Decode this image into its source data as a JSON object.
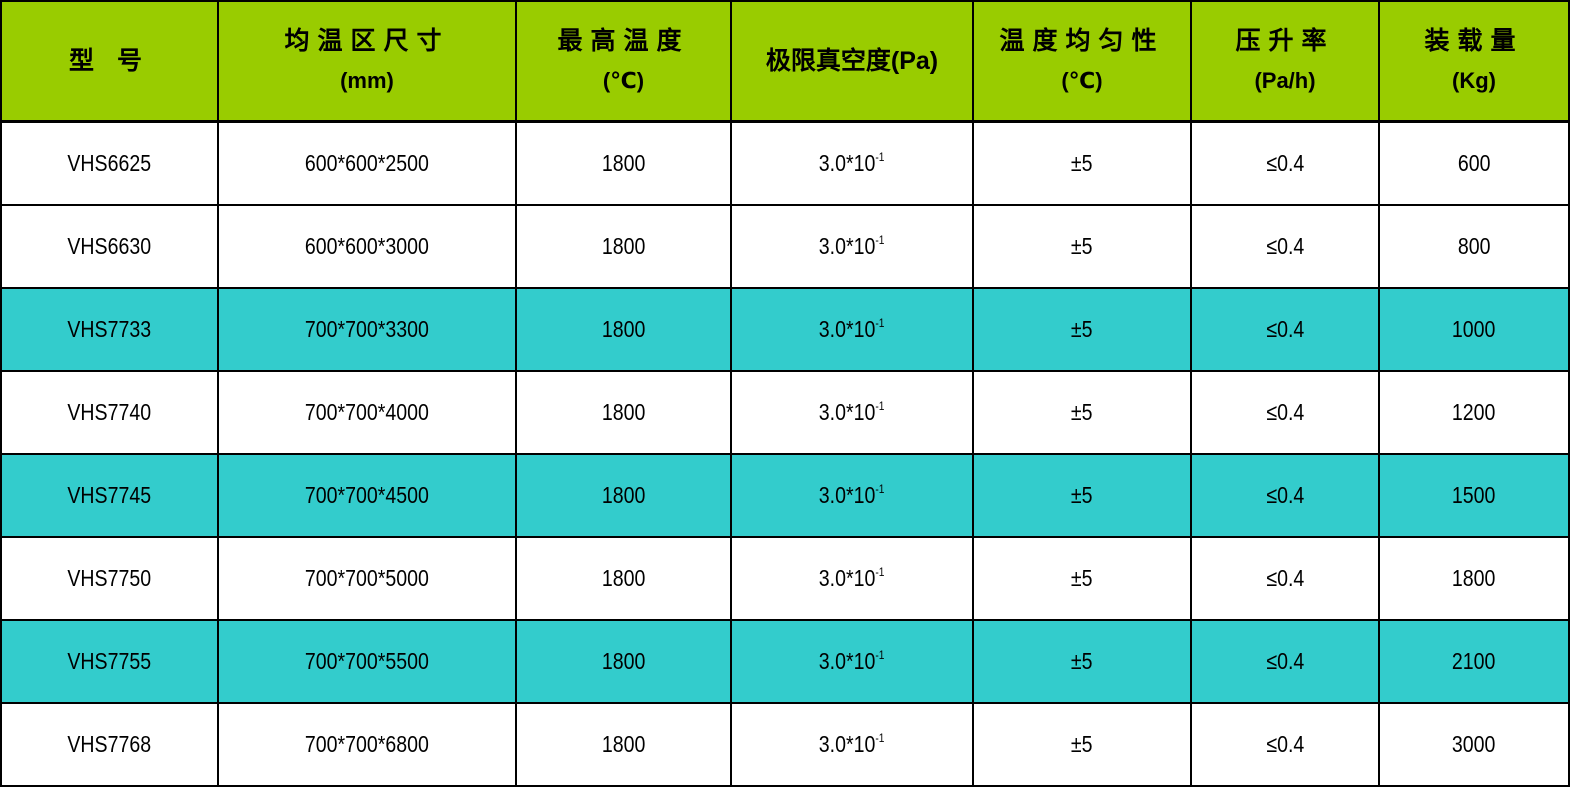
{
  "colors": {
    "header_bg": "#99cc00",
    "highlight_row_bg": "#33cccc",
    "row_bg": "#ffffff"
  },
  "headers": [
    {
      "line1": "型  号",
      "line2": ""
    },
    {
      "line1": "均温区尺寸",
      "line2": "(mm)"
    },
    {
      "line1": "最高温度",
      "line2": "(℃)"
    },
    {
      "line1": "极限真空度(Pa)",
      "line2": ""
    },
    {
      "line1": "温度均匀性",
      "line2": "(℃)"
    },
    {
      "line1": "压升率",
      "line2": "(Pa/h)"
    },
    {
      "line1": "装载量",
      "line2": "(Kg)"
    }
  ],
  "rows": [
    {
      "highlight": false,
      "model": "VHS6625",
      "size": "600*600*2500",
      "max_temp": "1800",
      "vacuum": "3.0*10",
      "vacuum_exp": "-1",
      "uniformity": "±5",
      "pressure_rise": "≤0.4",
      "load": "600"
    },
    {
      "highlight": false,
      "model": "VHS6630",
      "size": "600*600*3000",
      "max_temp": "1800",
      "vacuum": "3.0*10",
      "vacuum_exp": "-1",
      "uniformity": "±5",
      "pressure_rise": "≤0.4",
      "load": "800"
    },
    {
      "highlight": true,
      "model": "VHS7733",
      "size": "700*700*3300",
      "max_temp": "1800",
      "vacuum": "3.0*10",
      "vacuum_exp": "-1",
      "uniformity": "±5",
      "pressure_rise": "≤0.4",
      "load": "1000"
    },
    {
      "highlight": false,
      "model": "VHS7740",
      "size": "700*700*4000",
      "max_temp": "1800",
      "vacuum": "3.0*10",
      "vacuum_exp": "-1",
      "uniformity": "±5",
      "pressure_rise": "≤0.4",
      "load": "1200"
    },
    {
      "highlight": true,
      "model": "VHS7745",
      "size": "700*700*4500",
      "max_temp": "1800",
      "vacuum": "3.0*10",
      "vacuum_exp": "-1",
      "uniformity": "±5",
      "pressure_rise": "≤0.4",
      "load": "1500"
    },
    {
      "highlight": false,
      "model": "VHS7750",
      "size": "700*700*5000",
      "max_temp": "1800",
      "vacuum": "3.0*10",
      "vacuum_exp": "-1",
      "uniformity": "±5",
      "pressure_rise": "≤0.4",
      "load": "1800"
    },
    {
      "highlight": true,
      "model": "VHS7755",
      "size": "700*700*5500",
      "max_temp": "1800",
      "vacuum": "3.0*10",
      "vacuum_exp": "-1",
      "uniformity": "±5",
      "pressure_rise": "≤0.4",
      "load": "2100"
    },
    {
      "highlight": false,
      "model": "VHS7768",
      "size": "700*700*6800",
      "max_temp": "1800",
      "vacuum": "3.0*10",
      "vacuum_exp": "-1",
      "uniformity": "±5",
      "pressure_rise": "≤0.4",
      "load": "3000"
    }
  ]
}
